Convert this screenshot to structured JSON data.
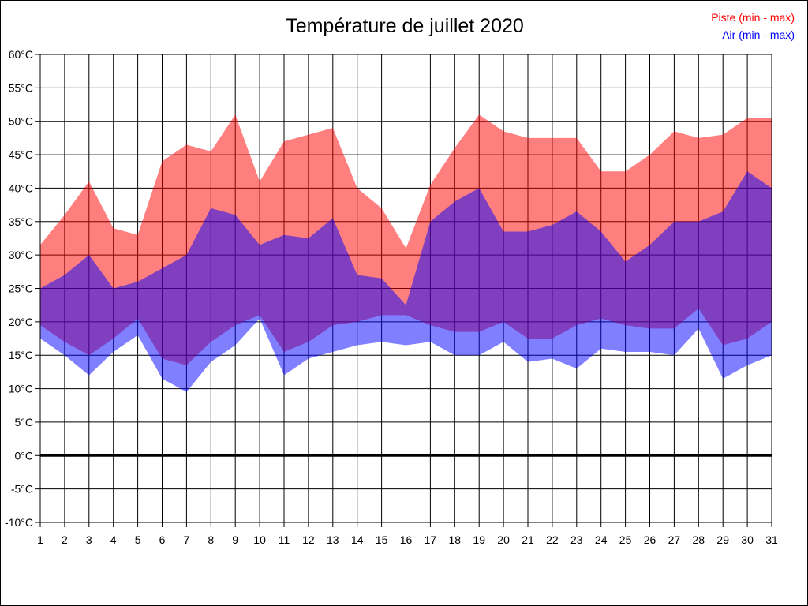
{
  "chart": {
    "title": "Température de juillet 2020",
    "legend": [
      {
        "series": "piste",
        "label": "Piste (min - max)",
        "color": "#ff0000"
      },
      {
        "series": "air",
        "label": "Air (min - max)",
        "color": "#0000ff"
      }
    ]
  },
  "chart_data": {
    "type": "area",
    "subtype": "min-max-bands",
    "title": "Température de juillet 2020",
    "xlabel": "",
    "ylabel": "",
    "categories": [
      1,
      2,
      3,
      4,
      5,
      6,
      7,
      8,
      9,
      10,
      11,
      12,
      13,
      14,
      15,
      16,
      17,
      18,
      19,
      20,
      21,
      22,
      23,
      24,
      25,
      26,
      27,
      28,
      29,
      30,
      31
    ],
    "series": [
      {
        "name": "Piste max",
        "band": "piste",
        "bound": "max",
        "color": "#ff0000",
        "fill_opacity": 0.5,
        "values": [
          31.5,
          36,
          41,
          34,
          33,
          44,
          46.5,
          45.5,
          51,
          41,
          47,
          48,
          49,
          40,
          37,
          31,
          40.5,
          46,
          51,
          48.5,
          47.5,
          47.5,
          47.5,
          42.5,
          42.5,
          45,
          48.5,
          47.5,
          48,
          50.5,
          50.5
        ]
      },
      {
        "name": "Piste min",
        "band": "piste",
        "bound": "min",
        "color": "#ff0000",
        "fill_opacity": 0.5,
        "values": [
          19.5,
          17,
          15,
          17.5,
          20.5,
          14.5,
          13.5,
          17,
          19.5,
          21,
          15.5,
          17,
          19.5,
          20,
          21,
          21,
          19.5,
          18.5,
          18.5,
          20,
          17.5,
          17.5,
          19.5,
          20.5,
          19.5,
          19,
          19,
          22,
          16.5,
          17.5,
          20
        ]
      },
      {
        "name": "Air max",
        "band": "air",
        "bound": "max",
        "color": "#0000ff",
        "fill_opacity": 0.5,
        "values": [
          25,
          27,
          30,
          25,
          26,
          28,
          30,
          37,
          36,
          31.5,
          33,
          32.5,
          35.5,
          27,
          26.5,
          22.5,
          35,
          38,
          40,
          33.5,
          33.5,
          34.5,
          36.5,
          33.5,
          29,
          31.5,
          35,
          35,
          36.5,
          42.5,
          40
        ]
      },
      {
        "name": "Air min",
        "band": "air",
        "bound": "min",
        "color": "#0000ff",
        "fill_opacity": 0.5,
        "values": [
          17.5,
          15,
          12,
          15.5,
          18,
          11.5,
          9.5,
          14,
          16.5,
          20.5,
          12,
          14.5,
          15.5,
          16.5,
          17,
          16.5,
          17,
          15,
          15,
          17,
          14,
          14.5,
          13,
          16,
          15.5,
          15.5,
          15,
          19,
          11.5,
          13.5,
          15
        ]
      }
    ],
    "ylim": [
      -10,
      60
    ],
    "y_tick_step": 5,
    "y_tick_labels": [
      "60°C",
      "55°C",
      "50°C",
      "45°C",
      "40°C",
      "35°C",
      "30°C",
      "25°C",
      "20°C",
      "15°C",
      "10°C",
      "5°C",
      "0°C",
      "-5°C",
      "-10°C"
    ],
    "zero_line": {
      "value": 0,
      "width": 3,
      "color": "#000000"
    },
    "grid": true,
    "grid_color": "#000000",
    "legend_position": "top-right",
    "overlap_note": "red and blue bands are 50% opaque; overlap renders purple"
  }
}
